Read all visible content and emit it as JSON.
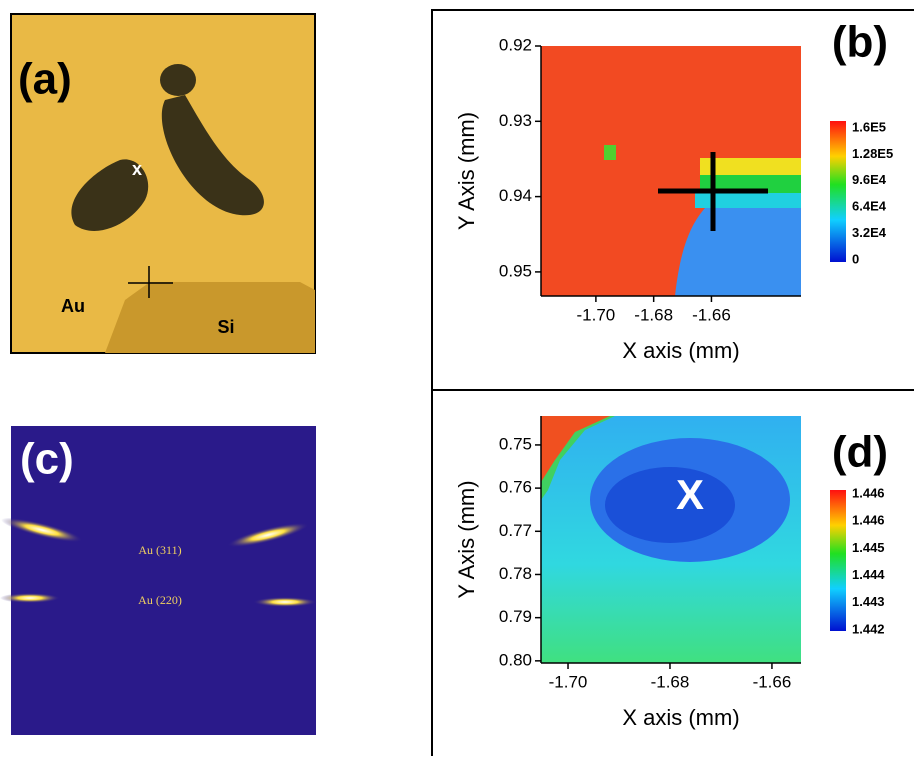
{
  "panels": {
    "a": {
      "label": "(a)",
      "marker": "x",
      "regions": [
        "Au",
        "Si"
      ]
    },
    "b": {
      "label": "(b)",
      "x_axis_title": "X axis (mm)",
      "y_axis_title": "Y Axis (mm)",
      "xlim": [
        -1.719,
        -1.629
      ],
      "ylim": [
        0.92,
        0.9532
      ],
      "xticks": [
        {
          "value": -1.7,
          "label": "-1.70"
        },
        -1.68,
        -1.66
      ],
      "yticks": [
        0.92,
        0.93,
        0.94,
        0.95
      ],
      "colorbar": [
        "1.6E5",
        "1.28E5",
        "9.6E4",
        "6.4E4",
        "3.2E4",
        "0"
      ]
    },
    "c": {
      "label": "(c)",
      "peaks": [
        "Au (311)",
        "Au (220)"
      ]
    },
    "d": {
      "label": "(d)",
      "marker": "X",
      "x_axis_title": "X axis (mm)",
      "y_axis_title": "Y Axis (mm)",
      "xlim": [
        -1.7053,
        -1.6543
      ],
      "ylim": [
        0.7433,
        0.8005
      ],
      "xticks": [
        {
          "value": -1.7,
          "label": "-1.70"
        },
        -1.68,
        -1.66
      ],
      "yticks": [
        0.75,
        0.76,
        0.77,
        0.78,
        0.79,
        {
          "value": 0.8,
          "label": "0.80"
        }
      ],
      "colorbar": [
        "1.446",
        "1.446",
        "1.445",
        "1.444",
        "1.443",
        "1.442"
      ]
    }
  }
}
